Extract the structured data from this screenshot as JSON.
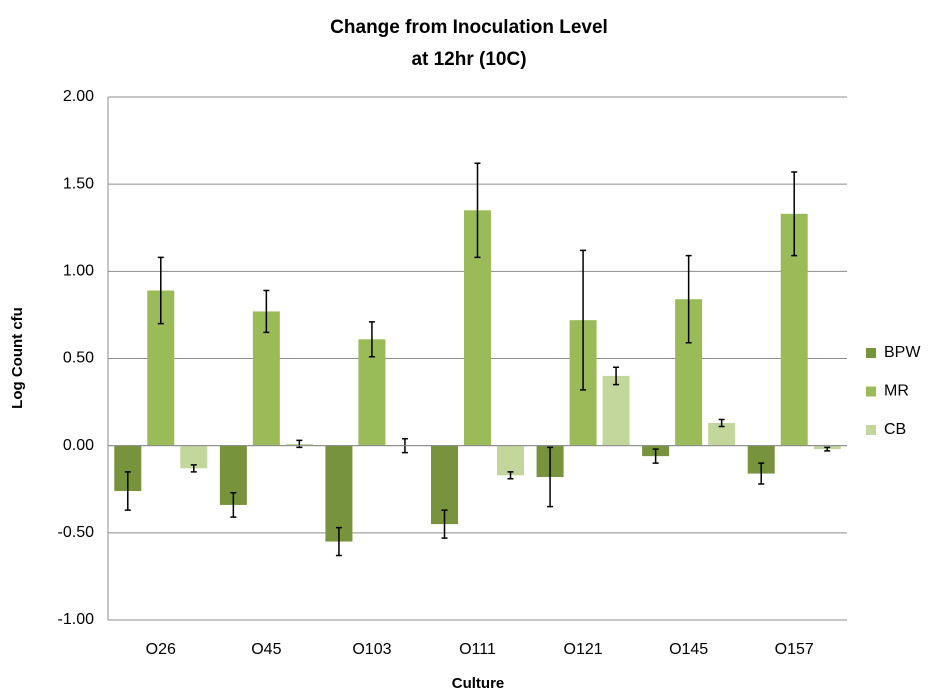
{
  "chart_data": {
    "type": "bar",
    "title": [
      "Change from  Inoculation Level",
      "at 12hr (10C)"
    ],
    "x_label": "Culture",
    "y_label": "Log Count cfu",
    "categories": [
      "O26",
      "O45",
      "O103",
      "O111",
      "O121",
      "O145",
      "O157"
    ],
    "series": [
      {
        "name": "BPW",
        "color": "#77933c",
        "values": [
          -0.26,
          -0.34,
          -0.55,
          -0.45,
          -0.18,
          -0.06,
          -0.16
        ],
        "errors": [
          0.11,
          0.07,
          0.08,
          0.08,
          0.17,
          0.04,
          0.06
        ]
      },
      {
        "name": "MR",
        "color": "#9bbb59",
        "values": [
          0.89,
          0.77,
          0.61,
          1.35,
          0.72,
          0.84,
          1.33
        ],
        "errors": [
          0.19,
          0.12,
          0.1,
          0.27,
          0.4,
          0.25,
          0.24
        ]
      },
      {
        "name": "CB",
        "color": "#c3d69b",
        "values": [
          -0.13,
          0.01,
          0.0,
          -0.17,
          0.4,
          0.13,
          -0.02
        ],
        "errors": [
          0.02,
          0.02,
          0.04,
          0.02,
          0.05,
          0.02,
          0.01
        ]
      }
    ],
    "ylim": [
      -1,
      2
    ],
    "yticks": [
      {
        "value": -1,
        "label": "-1.00"
      },
      {
        "value": -0.5,
        "label": "-0.50"
      },
      {
        "value": 0,
        "label": "0.00"
      },
      {
        "value": 0.5,
        "label": "0.50"
      },
      {
        "value": 1,
        "label": "1.00"
      },
      {
        "value": 1.5,
        "label": "1.50"
      },
      {
        "value": 2,
        "label": "2.00"
      }
    ],
    "grid": true,
    "legend": "right"
  }
}
